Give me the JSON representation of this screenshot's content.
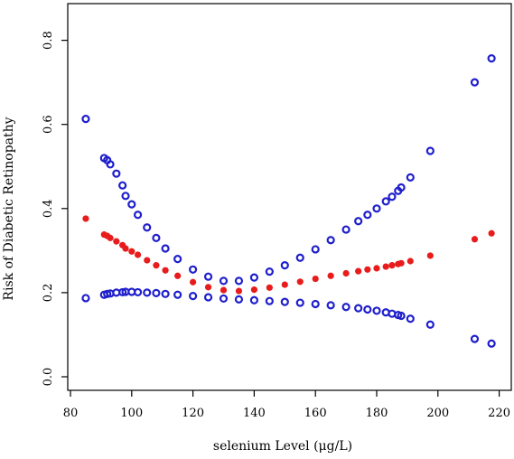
{
  "chart_data": {
    "type": "scatter",
    "title": "",
    "xlabel": "selenium Level (μg/L)",
    "ylabel": "Risk of Diabetic Retinopathy",
    "xlim": [
      80,
      220
    ],
    "ylim": [
      0.0,
      0.8
    ],
    "x_ticks": [
      "80",
      "100",
      "120",
      "140",
      "160",
      "180",
      "200",
      "220"
    ],
    "y_ticks": [
      "0.0",
      "0.2",
      "0.4",
      "0.6",
      "0.8"
    ],
    "grid": false,
    "legend": "none",
    "series": [
      {
        "role": "upper confidence limit",
        "color": "#1f1fcc",
        "marker": "open-circle",
        "x": [
          85,
          91,
          92,
          93,
          95,
          97,
          98,
          100,
          102,
          105,
          108,
          111,
          115,
          120,
          125,
          130,
          135,
          140,
          145,
          150,
          155,
          160,
          165,
          170,
          174,
          177,
          180,
          183,
          185,
          187,
          188,
          191,
          197.5,
          212,
          217.5
        ],
        "y": [
          0.613,
          0.52,
          0.515,
          0.505,
          0.483,
          0.455,
          0.43,
          0.41,
          0.385,
          0.355,
          0.33,
          0.305,
          0.28,
          0.255,
          0.238,
          0.228,
          0.228,
          0.236,
          0.25,
          0.265,
          0.283,
          0.303,
          0.325,
          0.35,
          0.37,
          0.385,
          0.4,
          0.417,
          0.428,
          0.442,
          0.45,
          0.474,
          0.537,
          0.7,
          0.757
        ]
      },
      {
        "role": "estimate",
        "color": "#e81c1c",
        "marker": "filled-circle",
        "x": [
          85,
          91,
          92,
          93,
          95,
          97,
          98,
          100,
          102,
          105,
          108,
          111,
          115,
          120,
          125,
          130,
          135,
          140,
          145,
          150,
          155,
          160,
          165,
          170,
          174,
          177,
          180,
          183,
          185,
          187,
          188,
          191,
          197.5,
          212,
          217.5
        ],
        "y": [
          0.376,
          0.338,
          0.335,
          0.33,
          0.322,
          0.313,
          0.305,
          0.298,
          0.29,
          0.277,
          0.265,
          0.253,
          0.24,
          0.225,
          0.213,
          0.206,
          0.204,
          0.207,
          0.212,
          0.219,
          0.226,
          0.233,
          0.24,
          0.246,
          0.251,
          0.255,
          0.258,
          0.262,
          0.265,
          0.268,
          0.27,
          0.275,
          0.288,
          0.327,
          0.341
        ]
      },
      {
        "role": "lower confidence limit",
        "color": "#1f1fcc",
        "marker": "open-circle",
        "x": [
          85,
          91,
          92,
          93,
          95,
          97,
          98,
          100,
          102,
          105,
          108,
          111,
          115,
          120,
          125,
          130,
          135,
          140,
          145,
          150,
          155,
          160,
          165,
          170,
          174,
          177,
          180,
          183,
          185,
          187,
          188,
          191,
          197.5,
          212,
          217.5
        ],
        "y": [
          0.187,
          0.195,
          0.197,
          0.198,
          0.2,
          0.201,
          0.202,
          0.202,
          0.201,
          0.2,
          0.199,
          0.197,
          0.195,
          0.192,
          0.189,
          0.186,
          0.184,
          0.182,
          0.18,
          0.178,
          0.176,
          0.173,
          0.17,
          0.166,
          0.163,
          0.16,
          0.157,
          0.153,
          0.15,
          0.147,
          0.145,
          0.138,
          0.124,
          0.09,
          0.079
        ]
      }
    ]
  }
}
